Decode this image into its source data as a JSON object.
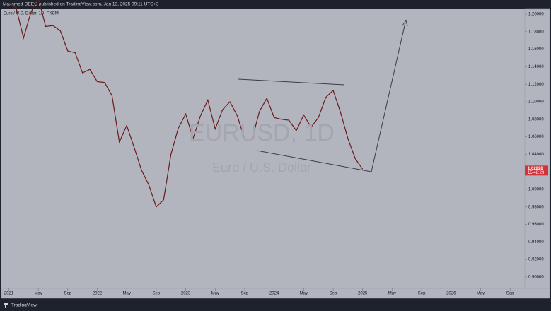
{
  "header": "Maxamed-DEEQ published on TradingView.com, Jan 13, 2025 09:11 UTC+3",
  "symbol_line": "Euro / U.S. Dollar, 1D, FXCM",
  "watermark": "EURUSD, 1D",
  "watermark_sub": "Euro / U.S. Dollar",
  "footer": "TradingView",
  "chart_data": {
    "type": "line",
    "x": [
      "2021-01",
      "2021-02",
      "2021-03",
      "2021-04",
      "2021-05",
      "2021-06",
      "2021-07",
      "2021-08",
      "2021-09",
      "2021-10",
      "2021-11",
      "2021-12",
      "2022-01",
      "2022-02",
      "2022-03",
      "2022-04",
      "2022-05",
      "2022-06",
      "2022-07",
      "2022-08",
      "2022-09",
      "2022-10",
      "2022-11",
      "2022-12",
      "2023-01",
      "2023-02",
      "2023-03",
      "2023-04",
      "2023-05",
      "2023-06",
      "2023-07",
      "2023-08",
      "2023-09",
      "2023-10",
      "2023-11",
      "2023-12",
      "2024-01",
      "2024-02",
      "2024-03",
      "2024-04",
      "2024-05",
      "2024-06",
      "2024-07",
      "2024-08",
      "2024-09",
      "2024-10",
      "2024-11",
      "2024-12",
      "2025-01"
    ],
    "series": [
      {
        "name": "EURUSD",
        "color": "#6b1a1a",
        "values": [
          1.213,
          1.207,
          1.173,
          1.202,
          1.219,
          1.186,
          1.187,
          1.181,
          1.158,
          1.156,
          1.133,
          1.137,
          1.123,
          1.122,
          1.107,
          1.054,
          1.073,
          1.048,
          1.022,
          1.005,
          0.98,
          0.988,
          1.04,
          1.07,
          1.086,
          1.058,
          1.084,
          1.102,
          1.069,
          1.091,
          1.1,
          1.084,
          1.057,
          1.057,
          1.089,
          1.104,
          1.082,
          1.08,
          1.079,
          1.067,
          1.085,
          1.071,
          1.082,
          1.105,
          1.113,
          1.088,
          1.058,
          1.035,
          1.023
        ]
      }
    ],
    "last_price": 1.02228,
    "countdown": "15:48:29",
    "ylim": [
      0.887,
      1.2057
    ],
    "yticks": [
      {
        "value": 0.9,
        "label": "0.90000"
      },
      {
        "value": 0.92,
        "label": "0.92000"
      },
      {
        "value": 0.94,
        "label": "0.94000"
      },
      {
        "value": 0.96,
        "label": "0.96000"
      },
      {
        "value": 0.98,
        "label": "0.98000"
      },
      {
        "value": 1.0,
        "label": "1.00000"
      },
      {
        "value": 1.02,
        "label": "1.02000"
      },
      {
        "value": 1.04,
        "label": "1.04000"
      },
      {
        "value": 1.06,
        "label": "1.06000"
      },
      {
        "value": 1.08,
        "label": "1.08000"
      },
      {
        "value": 1.1,
        "label": "1.10000"
      },
      {
        "value": 1.12,
        "label": "1.12000"
      },
      {
        "value": 1.14,
        "label": "1.14000"
      },
      {
        "value": 1.16,
        "label": "1.16000"
      },
      {
        "value": 1.18,
        "label": "1.18000"
      },
      {
        "value": 1.2,
        "label": "1.20000"
      }
    ],
    "xlim": [
      "2020-12",
      "2026-11"
    ],
    "xticks": [
      {
        "value": "2021-01",
        "label": "2021"
      },
      {
        "value": "2021-05",
        "label": "May"
      },
      {
        "value": "2021-09",
        "label": "Sep"
      },
      {
        "value": "2022-01",
        "label": "2022"
      },
      {
        "value": "2022-05",
        "label": "May"
      },
      {
        "value": "2022-09",
        "label": "Sep"
      },
      {
        "value": "2023-01",
        "label": "2023"
      },
      {
        "value": "2023-05",
        "label": "May"
      },
      {
        "value": "2023-09",
        "label": "Sep"
      },
      {
        "value": "2024-01",
        "label": "2024"
      },
      {
        "value": "2024-05",
        "label": "May"
      },
      {
        "value": "2024-09",
        "label": "Sep"
      },
      {
        "value": "2025-01",
        "label": "2025"
      },
      {
        "value": "2025-05",
        "label": "May"
      },
      {
        "value": "2025-09",
        "label": "Sep"
      },
      {
        "value": "2026-01",
        "label": "2026"
      },
      {
        "value": "2026-05",
        "label": "May"
      },
      {
        "value": "2026-09",
        "label": "Sep"
      }
    ]
  }
}
